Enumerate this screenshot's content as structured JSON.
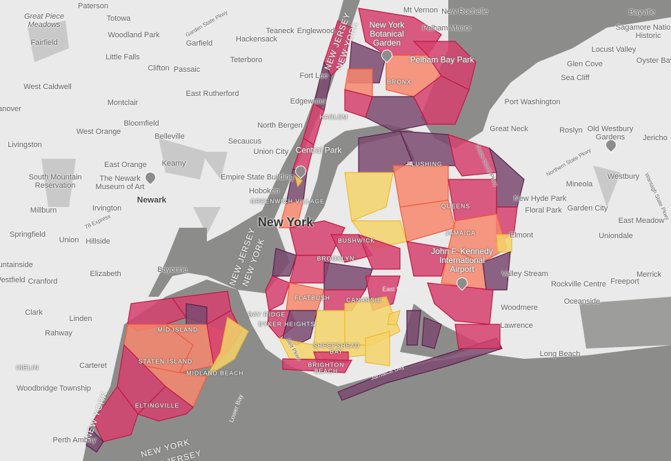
{
  "map": {
    "colors": {
      "water": "#8c8d8b",
      "land": "#e9eae9",
      "park": "#c8c9c8",
      "dark_purple": "#7b4a70",
      "magenta": "#d6416f",
      "salmon": "#f7876f",
      "yellow": "#f4d36a"
    },
    "labels": [
      {
        "text": "Paterson",
        "style": "town"
      },
      {
        "text": "Totowa",
        "style": "town"
      },
      {
        "text": "Great Piece Meadows",
        "style": "italic"
      },
      {
        "text": "Woodland Park",
        "style": "town"
      },
      {
        "text": "Fairfield",
        "style": "town"
      },
      {
        "text": "Garfield",
        "style": "town"
      },
      {
        "text": "Teaneck",
        "style": "town"
      },
      {
        "text": "Englewood",
        "style": "town"
      },
      {
        "text": "Hackensack",
        "style": "town"
      },
      {
        "text": "Little Falls",
        "style": "town"
      },
      {
        "text": "Clifton",
        "style": "town"
      },
      {
        "text": "Passaic",
        "style": "town"
      },
      {
        "text": "Teterboro",
        "style": "town"
      },
      {
        "text": "Fort Lee",
        "style": "town"
      },
      {
        "text": "West Caldwell",
        "style": "town"
      },
      {
        "text": "East Rutherford",
        "style": "town"
      },
      {
        "text": "Edgewater",
        "style": "town"
      },
      {
        "text": "Montclair",
        "style": "town"
      },
      {
        "text": "Hanover",
        "style": "town"
      },
      {
        "text": "Bloomfield",
        "style": "town"
      },
      {
        "text": "North Bergen",
        "style": "town"
      },
      {
        "text": "West Orange",
        "style": "town"
      },
      {
        "text": "Belleville",
        "style": "town"
      },
      {
        "text": "Livingston",
        "style": "town"
      },
      {
        "text": "Secaucus",
        "style": "town"
      },
      {
        "text": "Union City",
        "style": "town"
      },
      {
        "text": "Central Park",
        "style": "poi"
      },
      {
        "text": "East Orange",
        "style": "town"
      },
      {
        "text": "Kearny",
        "style": "town"
      },
      {
        "text": "South Mountain Reservation",
        "style": "town"
      },
      {
        "text": "The Newark Museum of Art",
        "style": "town"
      },
      {
        "text": "Empire State Building",
        "style": "town"
      },
      {
        "text": "Newark",
        "style": "bold"
      },
      {
        "text": "Hoboken",
        "style": "town"
      },
      {
        "text": "Greenwich Village",
        "style": "hood"
      },
      {
        "text": "Millburn",
        "style": "town"
      },
      {
        "text": "Irvington",
        "style": "town"
      },
      {
        "text": "New York",
        "style": "big"
      },
      {
        "text": "Springfield",
        "style": "town"
      },
      {
        "text": "Union",
        "style": "town"
      },
      {
        "text": "Hillside",
        "style": "town"
      },
      {
        "text": "Bayonne",
        "style": "town"
      },
      {
        "text": "Mountainside",
        "style": "town"
      },
      {
        "text": "Elizabeth",
        "style": "town"
      },
      {
        "text": "Westfield",
        "style": "town"
      },
      {
        "text": "Cranford",
        "style": "town"
      },
      {
        "text": "Clark",
        "style": "town"
      },
      {
        "text": "Linden",
        "style": "town"
      },
      {
        "text": "Rahway",
        "style": "town"
      },
      {
        "text": "Carteret",
        "style": "town"
      },
      {
        "text": "Iselin",
        "style": "hood"
      },
      {
        "text": "Woodbridge Township",
        "style": "town"
      },
      {
        "text": "Perth Amboy",
        "style": "town"
      },
      {
        "text": "Mt Vernon",
        "style": "town"
      },
      {
        "text": "New Rochelle",
        "style": "town"
      },
      {
        "text": "New York Botanical Garden",
        "style": "poi"
      },
      {
        "text": "Pelham Manor",
        "style": "town"
      },
      {
        "text": "Pelham Bay Park",
        "style": "poi"
      },
      {
        "text": "Bronx",
        "style": "hood"
      },
      {
        "text": "Harlem",
        "style": "hood"
      },
      {
        "text": "Bayville",
        "style": "town"
      },
      {
        "text": "Sagamore National Historic",
        "style": "town"
      },
      {
        "text": "Locust Valley",
        "style": "town"
      },
      {
        "text": "Glen Cove",
        "style": "town"
      },
      {
        "text": "Oyster Bay",
        "style": "town"
      },
      {
        "text": "Sea Cliff",
        "style": "town"
      },
      {
        "text": "Port Washington",
        "style": "town"
      },
      {
        "text": "Great Neck",
        "style": "town"
      },
      {
        "text": "Roslyn",
        "style": "town"
      },
      {
        "text": "Old Westbury Gardens",
        "style": "town"
      },
      {
        "text": "Jericho",
        "style": "town"
      },
      {
        "text": "Flushing",
        "style": "hood"
      },
      {
        "text": "Mineola",
        "style": "town"
      },
      {
        "text": "Westbury",
        "style": "town"
      },
      {
        "text": "New Hyde Park",
        "style": "town"
      },
      {
        "text": "Queens",
        "style": "hood"
      },
      {
        "text": "Floral Park",
        "style": "town"
      },
      {
        "text": "Garden City",
        "style": "town"
      },
      {
        "text": "East Meadow",
        "style": "town"
      },
      {
        "text": "Jamaica",
        "style": "hood"
      },
      {
        "text": "Elmont",
        "style": "town"
      },
      {
        "text": "Uniondale",
        "style": "town"
      },
      {
        "text": "John F. Kennedy International Airport",
        "style": "poi"
      },
      {
        "text": "Bushwick",
        "style": "hood"
      },
      {
        "text": "Brooklyn",
        "style": "hood"
      },
      {
        "text": "Valley Stream",
        "style": "town"
      },
      {
        "text": "Rockville Centre",
        "style": "town"
      },
      {
        "text": "Freeport",
        "style": "town"
      },
      {
        "text": "Merrick",
        "style": "town"
      },
      {
        "text": "Flatbush",
        "style": "hood"
      },
      {
        "text": "Canarsie",
        "style": "hood"
      },
      {
        "text": "Oceanside",
        "style": "town"
      },
      {
        "text": "Woodmere",
        "style": "town"
      },
      {
        "text": "Bay Ridge",
        "style": "hood"
      },
      {
        "text": "Dyker Heights",
        "style": "hood"
      },
      {
        "text": "Lawrence",
        "style": "town"
      },
      {
        "text": "Mid Island",
        "style": "hood"
      },
      {
        "text": "Sheepshead Bay",
        "style": "hood"
      },
      {
        "text": "Staten Island",
        "style": "hood"
      },
      {
        "text": "Midland Beach",
        "style": "hood"
      },
      {
        "text": "Brighton Beach",
        "style": "hood"
      },
      {
        "text": "Long Beach",
        "style": "town"
      },
      {
        "text": "Jamaica Bay",
        "style": "water"
      },
      {
        "text": "Eltingville",
        "style": "hood"
      },
      {
        "text": "Lower Bay",
        "style": "water"
      },
      {
        "text": "Garden State Pkwy",
        "style": "road"
      },
      {
        "text": "Northern State Pkwy",
        "style": "road"
      },
      {
        "text": "Cross Island Pkwy",
        "style": "road"
      },
      {
        "text": "Wantagh State Pkwy",
        "style": "road"
      },
      {
        "text": "Belt Pkwy",
        "style": "road"
      },
      {
        "text": "78 Express",
        "style": "road"
      },
      {
        "text": "East River",
        "style": "water"
      },
      {
        "text": "NEW JERSEY",
        "style": "state"
      },
      {
        "text": "NEW YORK",
        "style": "state"
      },
      {
        "text": "NEW JERSEY",
        "style": "state"
      },
      {
        "text": "NEW YORK",
        "style": "state"
      },
      {
        "text": "NEW YORK",
        "style": "state"
      },
      {
        "text": "NEW YORK",
        "style": "state"
      },
      {
        "text": "NEW JERSEY",
        "style": "state"
      }
    ]
  }
}
